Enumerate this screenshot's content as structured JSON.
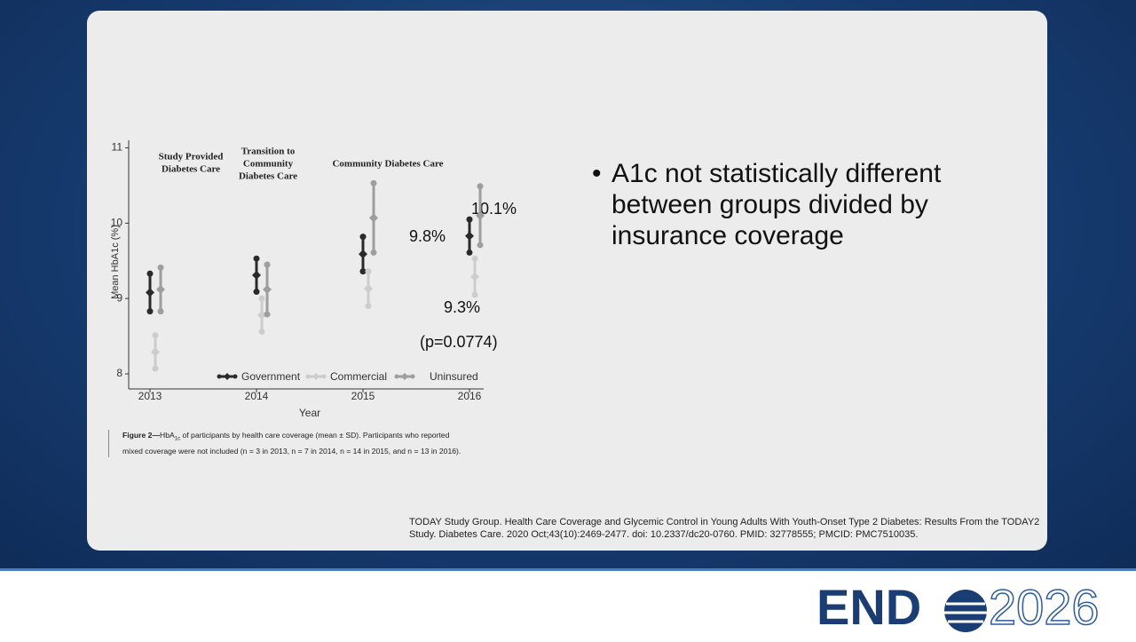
{
  "chart_data": {
    "type": "errorbar",
    "y_label": "Mean HbA1c (%)",
    "x_label": "Year",
    "categories": [
      "2013",
      "2014",
      "2015",
      "2016"
    ],
    "panels": [
      [
        "Study Provided",
        "Diabetes Care"
      ],
      [
        "Transition to",
        "Community",
        "Diabetes Care"
      ],
      [
        "Community Diabetes Care"
      ]
    ],
    "series": [
      {
        "name": "Government",
        "color": "#2a2a2a",
        "values": [
          9.08,
          9.31,
          9.59,
          9.83
        ],
        "errors": [
          0.25,
          0.22,
          0.23,
          0.22
        ]
      },
      {
        "name": "Commercial",
        "color": "#cdcdcd",
        "values": [
          8.29,
          8.78,
          9.13,
          9.29
        ],
        "errors": [
          0.22,
          0.22,
          0.23,
          0.24
        ]
      },
      {
        "name": "Uninsured",
        "color": "#9e9e9e",
        "values": [
          9.12,
          9.12,
          10.07,
          10.1
        ],
        "errors": [
          0.29,
          0.33,
          0.46,
          0.39
        ]
      }
    ],
    "ylim": [
      7.8,
      11.1
    ],
    "yticks": [
      8,
      9,
      10,
      11
    ],
    "annotations": [
      "10.1%",
      "9.8%",
      "9.3%",
      "(p=0.0774)"
    ]
  },
  "caption": [
    "Figure 2—",
    "HbA",
    "1c",
    " of participants by health care coverage (mean ± SD). Participants who reported",
    "mixed coverage were not included (n = 3 in 2013, n = 7 in 2014, n = 14 in 2015, and n = 13 in 2016)."
  ],
  "bullet": "A1c not statistically different between groups divided by insurance coverage",
  "citation": [
    "TODAY Study Group. Health Care Coverage and Glycemic Control in Young Adults With Youth-Onset Type 2 Diabetes: Results From the TODAY2",
    "Study. Diabetes Care. 2020 Oct;43(10):2469-2477. doi: 10.2337/dc20-0760. PMID: 32778555; PMCID: PMC7510035."
  ],
  "logo": {
    "brand": "END",
    "year": "2026"
  }
}
